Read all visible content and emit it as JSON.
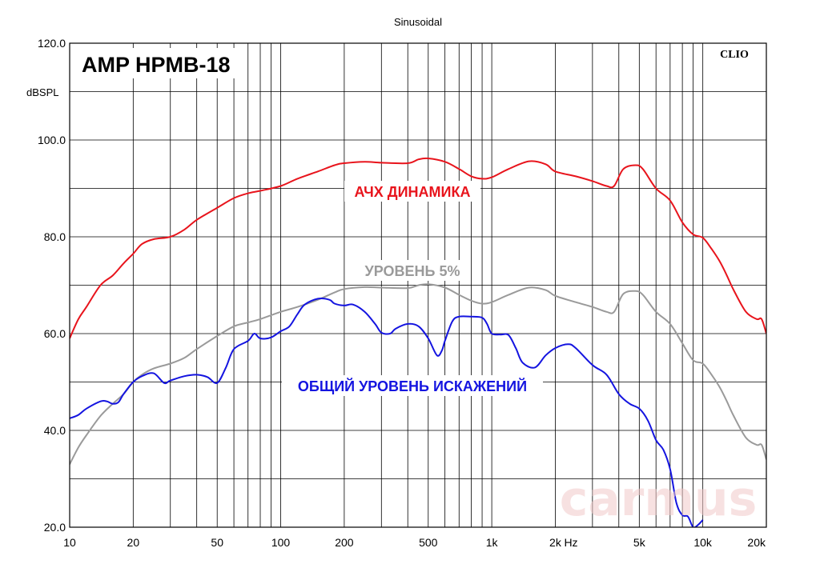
{
  "header": {
    "mode_label": "Sinusoidal"
  },
  "brand": {
    "model": "AMP HPMB-18",
    "software": "CLIO",
    "watermark": "carmus"
  },
  "chart_data": {
    "type": "line",
    "title": "Sinusoidal",
    "ylabel": "dBSPL",
    "xunit": "Hz",
    "xscale": "log",
    "xlim": [
      10,
      20000
    ],
    "ylim": [
      20,
      120
    ],
    "grid": true,
    "x_major_ticks": [
      10,
      20,
      50,
      100,
      200,
      500,
      1000,
      2000,
      5000,
      10000,
      20000
    ],
    "x_tick_labels": [
      "10",
      "20",
      "50",
      "100",
      "200",
      "500",
      "1k",
      "2k",
      "5k",
      "10k",
      "20k"
    ],
    "y_ticks": [
      20,
      40,
      60,
      80,
      100,
      120
    ],
    "y_tick_labels": [
      "20.0",
      "40.0",
      "60.0",
      "80.0",
      "100.0",
      "120.0"
    ],
    "series": [
      {
        "name": "АЧХ ДИНАМИКА",
        "color": "#e8141c",
        "points": [
          [
            10,
            59
          ],
          [
            11,
            63
          ],
          [
            12,
            65.5
          ],
          [
            14,
            70
          ],
          [
            16,
            72
          ],
          [
            18,
            74.5
          ],
          [
            20,
            76.5
          ],
          [
            22,
            78.5
          ],
          [
            25,
            79.5
          ],
          [
            30,
            80
          ],
          [
            35,
            81.5
          ],
          [
            40,
            83.5
          ],
          [
            50,
            86
          ],
          [
            60,
            88
          ],
          [
            70,
            89
          ],
          [
            80,
            89.5
          ],
          [
            100,
            90.5
          ],
          [
            120,
            92
          ],
          [
            150,
            93.5
          ],
          [
            180,
            94.8
          ],
          [
            200,
            95.2
          ],
          [
            250,
            95.5
          ],
          [
            300,
            95.3
          ],
          [
            400,
            95.2
          ],
          [
            450,
            96
          ],
          [
            500,
            96.2
          ],
          [
            600,
            95.5
          ],
          [
            700,
            94
          ],
          [
            800,
            92.5
          ],
          [
            900,
            92
          ],
          [
            1000,
            92.3
          ],
          [
            1200,
            94
          ],
          [
            1500,
            95.6
          ],
          [
            1800,
            95
          ],
          [
            2000,
            93.5
          ],
          [
            2500,
            92.5
          ],
          [
            3000,
            91.5
          ],
          [
            3500,
            90.5
          ],
          [
            3800,
            90.5
          ],
          [
            4200,
            94
          ],
          [
            4800,
            94.8
          ],
          [
            5200,
            94
          ],
          [
            6000,
            90
          ],
          [
            7000,
            87.5
          ],
          [
            8000,
            83
          ],
          [
            9000,
            80.5
          ],
          [
            10000,
            79.8
          ],
          [
            11000,
            77.5
          ],
          [
            12000,
            75
          ],
          [
            13000,
            72
          ],
          [
            14000,
            69
          ],
          [
            16000,
            64.5
          ],
          [
            18000,
            63
          ],
          [
            19000,
            63
          ],
          [
            20000,
            60
          ]
        ]
      },
      {
        "name": "УРОВЕНЬ 5%",
        "color": "#9a9a9a",
        "points": [
          [
            10,
            33
          ],
          [
            11,
            36.5
          ],
          [
            12,
            39
          ],
          [
            14,
            43
          ],
          [
            16,
            45.5
          ],
          [
            18,
            47.5
          ],
          [
            20,
            50
          ],
          [
            22,
            51.5
          ],
          [
            25,
            52.8
          ],
          [
            30,
            53.8
          ],
          [
            35,
            55
          ],
          [
            40,
            56.8
          ],
          [
            50,
            59.5
          ],
          [
            60,
            61.5
          ],
          [
            70,
            62.3
          ],
          [
            80,
            63
          ],
          [
            100,
            64.5
          ],
          [
            120,
            65.5
          ],
          [
            150,
            67
          ],
          [
            180,
            68.5
          ],
          [
            200,
            69.2
          ],
          [
            250,
            69.6
          ],
          [
            300,
            69.5
          ],
          [
            400,
            69.4
          ],
          [
            450,
            70
          ],
          [
            500,
            70.2
          ],
          [
            600,
            69.5
          ],
          [
            700,
            68
          ],
          [
            800,
            66.8
          ],
          [
            900,
            66.2
          ],
          [
            1000,
            66.5
          ],
          [
            1200,
            68
          ],
          [
            1500,
            69.5
          ],
          [
            1800,
            69
          ],
          [
            2000,
            67.8
          ],
          [
            2500,
            66.5
          ],
          [
            3000,
            65.5
          ],
          [
            3500,
            64.5
          ],
          [
            3800,
            64.5
          ],
          [
            4200,
            68.2
          ],
          [
            4800,
            68.8
          ],
          [
            5200,
            68
          ],
          [
            6000,
            64.5
          ],
          [
            7000,
            62
          ],
          [
            8000,
            58
          ],
          [
            9000,
            54.5
          ],
          [
            10000,
            53.8
          ],
          [
            11000,
            51.5
          ],
          [
            12000,
            49
          ],
          [
            13000,
            46
          ],
          [
            14000,
            43
          ],
          [
            16000,
            38.5
          ],
          [
            18000,
            37
          ],
          [
            19000,
            37
          ],
          [
            20000,
            34
          ]
        ]
      },
      {
        "name": "ОБЩИЙ УРОВЕНЬ ИСКАЖЕНИЙ",
        "color": "#1414e0",
        "points": [
          [
            10,
            42.5
          ],
          [
            11,
            43.2
          ],
          [
            12,
            44.5
          ],
          [
            14,
            46
          ],
          [
            15,
            46
          ],
          [
            16,
            45.5
          ],
          [
            17,
            45.8
          ],
          [
            18,
            47.5
          ],
          [
            20,
            50
          ],
          [
            22,
            51.2
          ],
          [
            25,
            51.8
          ],
          [
            28,
            49.8
          ],
          [
            30,
            50.3
          ],
          [
            35,
            51.2
          ],
          [
            40,
            51.5
          ],
          [
            45,
            51
          ],
          [
            50,
            49.8
          ],
          [
            55,
            53
          ],
          [
            60,
            56.8
          ],
          [
            70,
            58.5
          ],
          [
            75,
            60
          ],
          [
            80,
            59
          ],
          [
            90,
            59.2
          ],
          [
            100,
            60.5
          ],
          [
            110,
            61.5
          ],
          [
            120,
            64
          ],
          [
            130,
            66
          ],
          [
            150,
            67.2
          ],
          [
            170,
            67
          ],
          [
            180,
            66.2
          ],
          [
            200,
            65.8
          ],
          [
            220,
            66
          ],
          [
            250,
            64.5
          ],
          [
            280,
            62
          ],
          [
            300,
            60.2
          ],
          [
            330,
            60
          ],
          [
            350,
            61
          ],
          [
            400,
            62
          ],
          [
            450,
            61.5
          ],
          [
            500,
            59
          ],
          [
            550,
            55.5
          ],
          [
            580,
            56.5
          ],
          [
            600,
            58.5
          ],
          [
            650,
            62.5
          ],
          [
            700,
            63.5
          ],
          [
            800,
            63.5
          ],
          [
            900,
            63.3
          ],
          [
            950,
            62
          ],
          [
            1000,
            60
          ],
          [
            1100,
            59.8
          ],
          [
            1200,
            59.7
          ],
          [
            1300,
            57
          ],
          [
            1400,
            54
          ],
          [
            1600,
            53
          ],
          [
            1800,
            55.5
          ],
          [
            2000,
            57
          ],
          [
            2300,
            57.8
          ],
          [
            2500,
            57
          ],
          [
            3000,
            53.5
          ],
          [
            3500,
            51.5
          ],
          [
            4000,
            47.5
          ],
          [
            4500,
            45.5
          ],
          [
            5000,
            44.5
          ],
          [
            5500,
            42
          ],
          [
            6000,
            38
          ],
          [
            6500,
            36
          ],
          [
            7000,
            32
          ],
          [
            7500,
            25
          ],
          [
            8000,
            22.5
          ],
          [
            8500,
            22.2
          ],
          [
            9000,
            20
          ],
          [
            9500,
            20.5
          ],
          [
            10000,
            21.5
          ]
        ]
      }
    ],
    "annotations": [
      {
        "text": "АЧХ ДИНАМИКА",
        "color": "#e8141c"
      },
      {
        "text": "УРОВЕНЬ 5%",
        "color": "#9a9a9a"
      },
      {
        "text": "ОБЩИЙ УРОВЕНЬ ИСКАЖЕНИЙ",
        "color": "#1414e0"
      }
    ]
  }
}
